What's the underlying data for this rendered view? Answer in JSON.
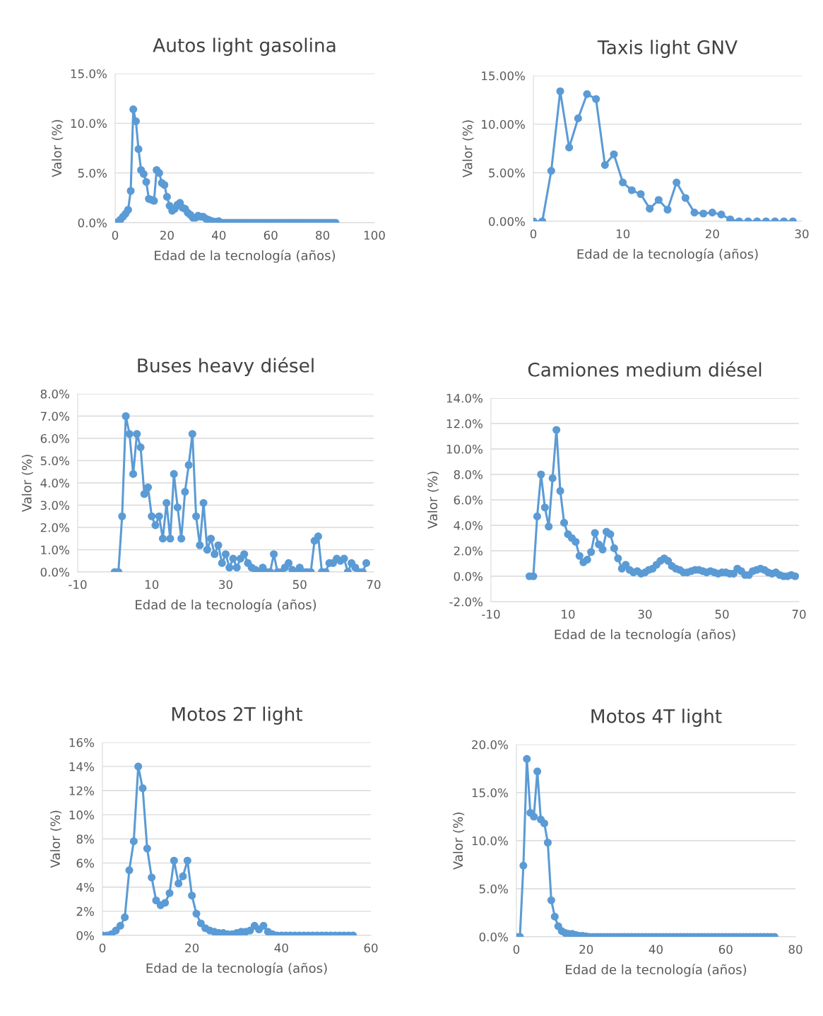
{
  "chart_data": [
    {
      "type": "line",
      "title": "Autos light gasolina",
      "xlabel": "Edad de la tecnología (años)",
      "ylabel": "Valor (%)",
      "marker": "circle",
      "line_style": "solid",
      "grid": "y",
      "xlim": [
        0,
        100
      ],
      "xticks": [
        0,
        20,
        40,
        60,
        80,
        100
      ],
      "ylim": [
        0,
        15
      ],
      "yticks": [
        {
          "value": 0,
          "label": "0.0%"
        },
        {
          "value": 5,
          "label": "5.0%"
        },
        {
          "value": 10,
          "label": "10.0%"
        },
        {
          "value": 15,
          "label": "15.0%"
        }
      ],
      "series": [
        {
          "color": "#5b9bd5",
          "x": [
            0,
            1,
            2,
            3,
            4,
            5,
            6,
            7,
            8,
            9,
            10,
            11,
            12,
            13,
            14,
            15,
            16,
            17,
            18,
            19,
            20,
            21,
            22,
            23,
            24,
            25,
            26,
            27,
            28,
            29,
            30,
            31,
            32,
            33,
            34,
            35,
            36,
            37,
            38,
            39,
            40,
            41,
            42,
            43,
            44,
            45,
            46,
            47,
            48,
            49,
            50,
            51,
            52,
            53,
            54,
            55,
            56,
            57,
            58,
            59,
            60,
            61,
            62,
            63,
            64,
            65,
            66,
            67,
            68,
            69,
            70,
            71,
            72,
            73,
            74,
            75,
            76,
            77,
            78,
            79,
            80,
            81,
            82,
            83,
            84,
            85
          ],
          "values": [
            0,
            0.05,
            0.3,
            0.6,
            0.9,
            1.3,
            3.2,
            11.4,
            10.2,
            7.4,
            5.3,
            4.9,
            4.1,
            2.4,
            2.3,
            2.2,
            5.3,
            5.0,
            4.0,
            3.8,
            2.6,
            1.7,
            1.2,
            1.4,
            1.8,
            2.0,
            1.5,
            1.4,
            1.0,
            0.8,
            0.5,
            0.5,
            0.7,
            0.6,
            0.6,
            0.4,
            0.3,
            0.2,
            0.1,
            0.1,
            0.15,
            0,
            0,
            0,
            0,
            0,
            0,
            0,
            0,
            0,
            0,
            0,
            0,
            0,
            0,
            0,
            0,
            0,
            0,
            0,
            0,
            0,
            0,
            0,
            0,
            0,
            0,
            0,
            0,
            0,
            0,
            0,
            0,
            0,
            0,
            0,
            0,
            0,
            0,
            0,
            0,
            0,
            0,
            0,
            0,
            0
          ]
        }
      ]
    },
    {
      "type": "line",
      "title": "Taxis light GNV",
      "xlabel": "Edad de la tecnología (años)",
      "ylabel": "Valor (%)",
      "marker": "circle",
      "line_style": "solid",
      "grid": "y",
      "xlim": [
        0,
        30
      ],
      "xticks": [
        0,
        10,
        20,
        30
      ],
      "ylim": [
        0,
        15
      ],
      "yticks": [
        {
          "value": 0,
          "label": "0.00%"
        },
        {
          "value": 5,
          "label": "5.00%"
        },
        {
          "value": 10,
          "label": "10.00%"
        },
        {
          "value": 15,
          "label": "15.00%"
        }
      ],
      "series": [
        {
          "color": "#5b9bd5",
          "x": [
            0,
            1,
            2,
            3,
            4,
            5,
            6,
            7,
            8,
            9,
            10,
            11,
            12,
            13,
            14,
            15,
            16,
            17,
            18,
            19,
            20,
            21,
            22,
            23,
            24,
            25,
            26,
            27,
            28,
            29
          ],
          "values": [
            0,
            0,
            5.2,
            13.4,
            7.6,
            10.6,
            13.1,
            12.6,
            5.8,
            6.9,
            4.0,
            3.2,
            2.8,
            1.3,
            2.2,
            1.2,
            4.0,
            2.4,
            0.9,
            0.8,
            0.9,
            0.7,
            0.2,
            0,
            0,
            0,
            0,
            0,
            0,
            0
          ]
        }
      ]
    },
    {
      "type": "line",
      "title": "Buses heavy diésel",
      "xlabel": "Edad de la tecnología (años)",
      "ylabel": "Valor (%)",
      "marker": "circle",
      "line_style": "solid",
      "grid": "y",
      "xlim": [
        -10,
        70
      ],
      "xticks": [
        -10,
        10,
        30,
        50,
        70
      ],
      "ylim": [
        0,
        8
      ],
      "yticks": [
        {
          "value": 0,
          "label": "0.0%"
        },
        {
          "value": 1,
          "label": "1.0%"
        },
        {
          "value": 2,
          "label": "2.0%"
        },
        {
          "value": 3,
          "label": "3.0%"
        },
        {
          "value": 4,
          "label": "4.0%"
        },
        {
          "value": 5,
          "label": "5.0%"
        },
        {
          "value": 6,
          "label": "6.0%"
        },
        {
          "value": 7,
          "label": "7.0%"
        },
        {
          "value": 8,
          "label": "8.0%"
        }
      ],
      "series": [
        {
          "color": "#5b9bd5",
          "x": [
            0,
            1,
            2,
            3,
            4,
            5,
            6,
            7,
            8,
            9,
            10,
            11,
            12,
            13,
            14,
            15,
            16,
            17,
            18,
            19,
            20,
            21,
            22,
            23,
            24,
            25,
            26,
            27,
            28,
            29,
            30,
            31,
            32,
            33,
            34,
            35,
            36,
            37,
            38,
            39,
            40,
            41,
            42,
            43,
            44,
            45,
            46,
            47,
            48,
            49,
            50,
            51,
            52,
            53,
            54,
            55,
            56,
            57,
            58,
            59,
            60,
            61,
            62,
            63,
            64,
            65,
            66,
            67,
            68
          ],
          "values": [
            0,
            0,
            2.5,
            7.0,
            6.2,
            4.4,
            6.2,
            5.6,
            3.5,
            3.8,
            2.5,
            2.1,
            2.5,
            1.5,
            3.1,
            1.5,
            4.4,
            2.9,
            1.5,
            3.6,
            4.8,
            6.2,
            2.5,
            1.2,
            3.1,
            1.0,
            1.5,
            0.8,
            1.2,
            0.4,
            0.8,
            0.2,
            0.6,
            0.2,
            0.6,
            0.8,
            0.4,
            0.2,
            0.1,
            0,
            0.2,
            0,
            0,
            0.8,
            0,
            0,
            0.2,
            0.4,
            0.1,
            0,
            0.2,
            0,
            0,
            0,
            1.4,
            1.6,
            0,
            0,
            0.4,
            0.4,
            0.6,
            0.5,
            0.6,
            0,
            0.4,
            0.2,
            0,
            0,
            0.4
          ]
        }
      ]
    },
    {
      "type": "line",
      "title": "Camiones medium diésel",
      "xlabel": "Edad de la tecnología (años)",
      "ylabel": "Valor (%)",
      "marker": "circle",
      "line_style": "solid",
      "grid": "y",
      "xlim": [
        -10,
        70
      ],
      "xticks": [
        -10,
        10,
        30,
        50,
        70
      ],
      "ylim": [
        -2,
        14
      ],
      "yticks": [
        {
          "value": -2,
          "label": "-2.0%"
        },
        {
          "value": 0,
          "label": "0.0%"
        },
        {
          "value": 2,
          "label": "2.0%"
        },
        {
          "value": 4,
          "label": "4.0%"
        },
        {
          "value": 6,
          "label": "6.0%"
        },
        {
          "value": 8,
          "label": "8.0%"
        },
        {
          "value": 10,
          "label": "10.0%"
        },
        {
          "value": 12,
          "label": "12.0%"
        },
        {
          "value": 14,
          "label": "14.0%"
        }
      ],
      "series": [
        {
          "color": "#5b9bd5",
          "x": [
            0,
            1,
            2,
            3,
            4,
            5,
            6,
            7,
            8,
            9,
            10,
            11,
            12,
            13,
            14,
            15,
            16,
            17,
            18,
            19,
            20,
            21,
            22,
            23,
            24,
            25,
            26,
            27,
            28,
            29,
            30,
            31,
            32,
            33,
            34,
            35,
            36,
            37,
            38,
            39,
            40,
            41,
            42,
            43,
            44,
            45,
            46,
            47,
            48,
            49,
            50,
            51,
            52,
            53,
            54,
            55,
            56,
            57,
            58,
            59,
            60,
            61,
            62,
            63,
            64,
            65,
            66,
            67,
            68,
            69
          ],
          "values": [
            0,
            0,
            4.7,
            8.0,
            5.4,
            3.9,
            7.7,
            11.5,
            6.7,
            4.2,
            3.3,
            3.0,
            2.7,
            1.6,
            1.1,
            1.3,
            1.9,
            3.4,
            2.5,
            2.1,
            3.5,
            3.3,
            2.2,
            1.4,
            0.6,
            0.9,
            0.5,
            0.3,
            0.4,
            0.2,
            0.3,
            0.5,
            0.6,
            0.9,
            1.2,
            1.4,
            1.2,
            0.8,
            0.6,
            0.5,
            0.3,
            0.3,
            0.4,
            0.5,
            0.5,
            0.4,
            0.3,
            0.4,
            0.3,
            0.2,
            0.3,
            0.3,
            0.2,
            0.2,
            0.6,
            0.4,
            0.1,
            0.1,
            0.4,
            0.5,
            0.6,
            0.5,
            0.3,
            0.2,
            0.3,
            0.1,
            0,
            0,
            0.1,
            0
          ]
        }
      ]
    },
    {
      "type": "line",
      "title": "Motos 2T light",
      "xlabel": "Edad de la tecnología (años)",
      "ylabel": "Valor (%)",
      "marker": "circle",
      "line_style": "solid",
      "grid": "y",
      "xlim": [
        0,
        60
      ],
      "xticks": [
        0,
        20,
        40,
        60
      ],
      "ylim": [
        0,
        16
      ],
      "yticks": [
        {
          "value": 0,
          "label": "0%"
        },
        {
          "value": 2,
          "label": "2%"
        },
        {
          "value": 4,
          "label": "4%"
        },
        {
          "value": 6,
          "label": "6%"
        },
        {
          "value": 8,
          "label": "8%"
        },
        {
          "value": 10,
          "label": "10%"
        },
        {
          "value": 12,
          "label": "12%"
        },
        {
          "value": 14,
          "label": "14%"
        },
        {
          "value": 16,
          "label": "16%"
        }
      ],
      "series": [
        {
          "color": "#5b9bd5",
          "x": [
            0,
            1,
            2,
            3,
            4,
            5,
            6,
            7,
            8,
            9,
            10,
            11,
            12,
            13,
            14,
            15,
            16,
            17,
            18,
            19,
            20,
            21,
            22,
            23,
            24,
            25,
            26,
            27,
            28,
            29,
            30,
            31,
            32,
            33,
            34,
            35,
            36,
            37,
            38,
            39,
            40,
            41,
            42,
            43,
            44,
            45,
            46,
            47,
            48,
            49,
            50,
            51,
            52,
            53,
            54,
            55,
            56
          ],
          "values": [
            0,
            0,
            0.1,
            0.4,
            0.8,
            1.5,
            5.4,
            7.8,
            14.0,
            12.2,
            7.2,
            4.8,
            2.9,
            2.5,
            2.7,
            3.5,
            6.2,
            4.3,
            4.9,
            6.2,
            3.3,
            1.8,
            1.0,
            0.6,
            0.4,
            0.3,
            0.2,
            0.2,
            0.1,
            0.1,
            0.2,
            0.3,
            0.3,
            0.4,
            0.8,
            0.5,
            0.8,
            0.3,
            0.1,
            0,
            0,
            0,
            0,
            0,
            0,
            0,
            0,
            0,
            0,
            0,
            0,
            0,
            0,
            0,
            0,
            0,
            0
          ]
        }
      ]
    },
    {
      "type": "line",
      "title": "Motos 4T light",
      "xlabel": "Edad de la tecnología (años)",
      "ylabel": "Valor (%)",
      "marker": "circle",
      "line_style": "solid",
      "grid": "y",
      "xlim": [
        0,
        80
      ],
      "xticks": [
        0,
        20,
        40,
        60,
        80
      ],
      "ylim": [
        0,
        20
      ],
      "yticks": [
        {
          "value": 0,
          "label": "0.0%"
        },
        {
          "value": 5,
          "label": "5.0%"
        },
        {
          "value": 10,
          "label": "10.0%"
        },
        {
          "value": 15,
          "label": "15.0%"
        },
        {
          "value": 20,
          "label": "20.0%"
        }
      ],
      "series": [
        {
          "color": "#5b9bd5",
          "x": [
            0,
            1,
            2,
            3,
            4,
            5,
            6,
            7,
            8,
            9,
            10,
            11,
            12,
            13,
            14,
            15,
            16,
            17,
            18,
            19,
            20,
            21,
            22,
            23,
            24,
            25,
            26,
            27,
            28,
            29,
            30,
            31,
            32,
            33,
            34,
            35,
            36,
            37,
            38,
            39,
            40,
            41,
            42,
            43,
            44,
            45,
            46,
            47,
            48,
            49,
            50,
            51,
            52,
            53,
            54,
            55,
            56,
            57,
            58,
            59,
            60,
            61,
            62,
            63,
            64,
            65,
            66,
            67,
            68,
            69,
            70,
            71,
            72,
            73,
            74
          ],
          "values": [
            0,
            0,
            7.4,
            18.5,
            12.9,
            12.5,
            17.2,
            12.2,
            11.8,
            9.8,
            3.8,
            2.1,
            1.1,
            0.6,
            0.4,
            0.3,
            0.3,
            0.2,
            0.1,
            0.1,
            0.05,
            0,
            0,
            0,
            0,
            0,
            0,
            0,
            0,
            0,
            0,
            0,
            0,
            0,
            0,
            0,
            0,
            0,
            0,
            0,
            0,
            0,
            0,
            0,
            0,
            0,
            0,
            0,
            0,
            0,
            0,
            0,
            0,
            0,
            0,
            0,
            0,
            0,
            0,
            0,
            0,
            0,
            0,
            0,
            0,
            0,
            0,
            0,
            0,
            0,
            0,
            0,
            0,
            0,
            0
          ]
        }
      ]
    }
  ]
}
